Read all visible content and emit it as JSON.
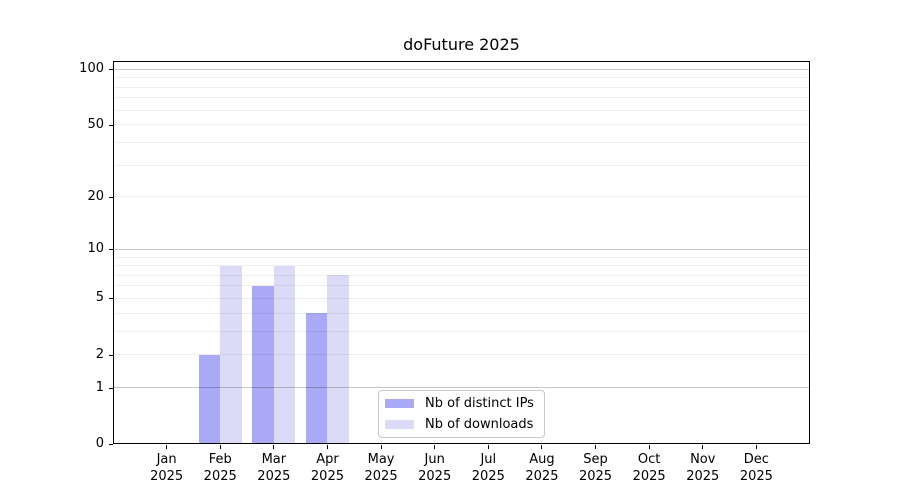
{
  "title": "doFuture 2025",
  "colors": {
    "ips_bar": "#a9a9f5",
    "downloads_bar": "#dbdbf8",
    "major_grid": "rgba(0,0,0,0.22)",
    "minor_grid": "rgba(0,0,0,0.065)",
    "spine": "#000000",
    "legend_border": "#c9c9c9"
  },
  "legend": {
    "items": [
      {
        "label": "Nb of distinct IPs",
        "color": "#a9a9f5"
      },
      {
        "label": "Nb of downloads",
        "color": "#dbdbf8"
      }
    ]
  },
  "chart_data": {
    "type": "bar",
    "title": "doFuture 2025",
    "categories": [
      "Jan 2025",
      "Feb 2025",
      "Mar 2025",
      "Apr 2025",
      "May 2025",
      "Jun 2025",
      "Jul 2025",
      "Aug 2025",
      "Sep 2025",
      "Oct 2025",
      "Nov 2025",
      "Dec 2025"
    ],
    "series": [
      {
        "name": "Nb of distinct IPs",
        "color_key": "ips_bar",
        "values": [
          0,
          2,
          6,
          4,
          0,
          0,
          0,
          0,
          0,
          0,
          0,
          0
        ]
      },
      {
        "name": "Nb of downloads",
        "color_key": "downloads_bar",
        "values": [
          0,
          8,
          8,
          7,
          0,
          0,
          0,
          0,
          0,
          0,
          0,
          0
        ]
      }
    ],
    "xlabel": "",
    "ylabel": "",
    "y_scale": "log10(1+y)",
    "y_ticks": [
      0,
      1,
      2,
      5,
      10,
      20,
      50,
      100
    ],
    "y_major_gridlines": [
      1,
      10,
      100
    ],
    "y_minor_gridlines": [
      2,
      3,
      4,
      5,
      6,
      7,
      8,
      9,
      20,
      30,
      40,
      50,
      60,
      70,
      80,
      90
    ],
    "ylim": [
      0,
      110
    ],
    "grid": true,
    "legend_position": "lower center"
  }
}
